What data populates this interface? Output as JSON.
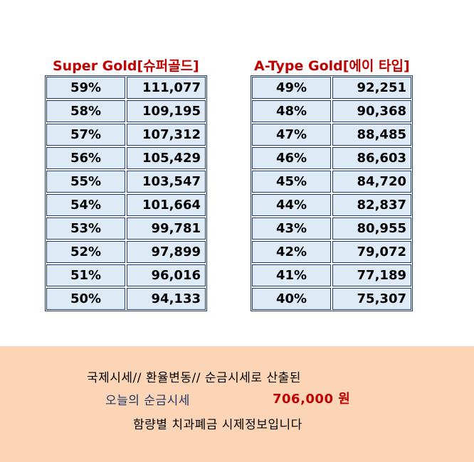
{
  "super_gold": {
    "title": "Super Gold[슈퍼골드]",
    "rows": [
      {
        "percent": "59%",
        "price": "111,077"
      },
      {
        "percent": "58%",
        "price": "109,195"
      },
      {
        "percent": "57%",
        "price": "107,312"
      },
      {
        "percent": "56%",
        "price": "105,429"
      },
      {
        "percent": "55%",
        "price": "103,547"
      },
      {
        "percent": "54%",
        "price": "101,664"
      },
      {
        "percent": "53%",
        "price": "99,781"
      },
      {
        "percent": "52%",
        "price": "97,899"
      },
      {
        "percent": "51%",
        "price": "96,016"
      },
      {
        "percent": "50%",
        "price": "94,133"
      }
    ]
  },
  "a_type_gold": {
    "title": "A-Type Gold[에이 타입]",
    "rows": [
      {
        "percent": "49%",
        "price": "92,251"
      },
      {
        "percent": "48%",
        "price": "90,368"
      },
      {
        "percent": "47%",
        "price": "88,485"
      },
      {
        "percent": "46%",
        "price": "86,603"
      },
      {
        "percent": "45%",
        "price": "84,720"
      },
      {
        "percent": "44%",
        "price": "82,837"
      },
      {
        "percent": "43%",
        "price": "80,955"
      },
      {
        "percent": "42%",
        "price": "79,072"
      },
      {
        "percent": "41%",
        "price": "77,189"
      },
      {
        "percent": "40%",
        "price": "75,307"
      }
    ]
  },
  "notice": {
    "line1": "국제시세// 환율변동// 순금시세로 산출된",
    "line2_label": "오늘의 순금시세",
    "line2_value": "706,000  원",
    "line3": "함량별 치과폐금 시제정보입니다"
  },
  "colors": {
    "title_red": "#c00000",
    "cell_bg": "#deebf7",
    "border_navy": "#1f3864",
    "notice_bg": "#fbd5b5"
  }
}
